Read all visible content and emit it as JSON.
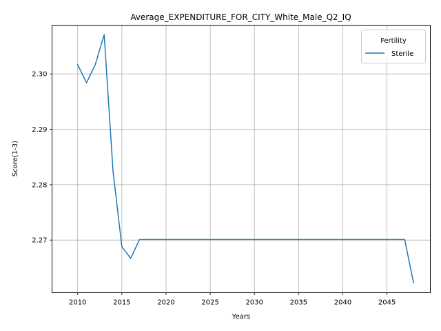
{
  "chart_data": {
    "type": "line",
    "title": "Average_EXPENDITURE_FOR_CITY_White_Male_Q2_IQ",
    "xlabel": "Years",
    "ylabel": "Score(1-3)",
    "xlim": [
      2007.1,
      2049.9
    ],
    "ylim": [
      2.2605,
      2.3088
    ],
    "xticks": [
      2010,
      2015,
      2020,
      2025,
      2030,
      2035,
      2040,
      2045
    ],
    "xtick_labels": [
      "2010",
      "2015",
      "2020",
      "2025",
      "2030",
      "2035",
      "2040",
      "2045"
    ],
    "yticks": [
      2.27,
      2.28,
      2.29,
      2.3
    ],
    "ytick_labels": [
      "2.27",
      "2.28",
      "2.29",
      "2.30"
    ],
    "grid": true,
    "legend": {
      "title": "Fertility",
      "position": "top-right"
    },
    "series": [
      {
        "name": "Sterile",
        "color": "#1f77b4",
        "x": [
          2010,
          2011,
          2012,
          2013,
          2014,
          2015,
          2016,
          2017,
          2018,
          2019,
          2020,
          2021,
          2022,
          2023,
          2024,
          2025,
          2026,
          2027,
          2028,
          2029,
          2030,
          2031,
          2032,
          2033,
          2034,
          2035,
          2036,
          2037,
          2038,
          2039,
          2040,
          2041,
          2042,
          2043,
          2044,
          2045,
          2046,
          2047,
          2048
        ],
        "y": [
          2.3017,
          2.2984,
          2.3017,
          2.3071,
          2.2825,
          2.2688,
          2.2667,
          2.2701,
          2.2701,
          2.2701,
          2.2701,
          2.2701,
          2.2701,
          2.2701,
          2.2701,
          2.2701,
          2.2701,
          2.2701,
          2.2701,
          2.2701,
          2.2701,
          2.2701,
          2.2701,
          2.2701,
          2.2701,
          2.2701,
          2.2701,
          2.2701,
          2.2701,
          2.2701,
          2.2701,
          2.2701,
          2.2701,
          2.2701,
          2.2701,
          2.2701,
          2.2701,
          2.2701,
          2.2623
        ]
      }
    ]
  }
}
